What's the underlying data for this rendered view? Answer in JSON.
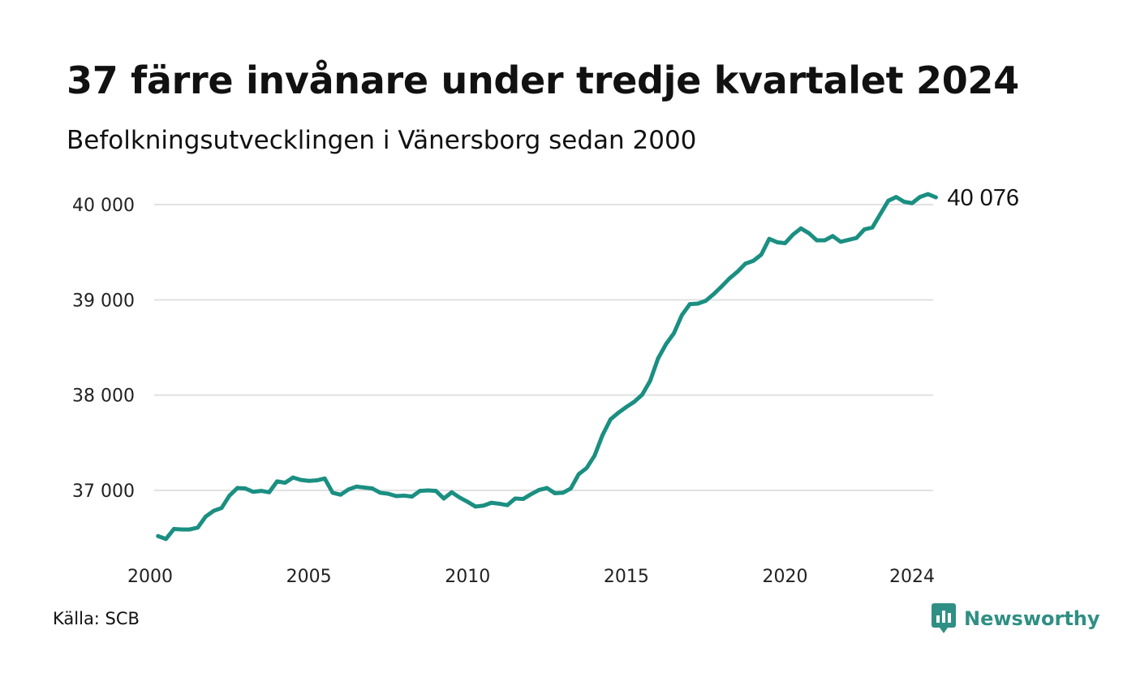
{
  "title": "37 färre invånare under tredje kvartalet 2024",
  "subtitle": "Befolkningsutvecklingen i Vänersborg sedan 2000",
  "source": "Källa: SCB",
  "brand": {
    "name": "Newsworthy",
    "icon": "newsworthy-logo-icon",
    "color": "#2f8f84"
  },
  "chart_data": {
    "type": "line",
    "title": "37 färre invånare under tredje kvartalet 2024",
    "subtitle": "Befolkningsutvecklingen i Vänersborg sedan 2000",
    "xlabel": "",
    "ylabel": "",
    "xlim": [
      2000,
      2024.75
    ],
    "ylim": [
      36430,
      40080
    ],
    "grid": "horizontal",
    "line_color": "#1a8f82",
    "y_ticks": [
      {
        "value": 37000,
        "label": "37 000"
      },
      {
        "value": 38000,
        "label": "38 000"
      },
      {
        "value": 39000,
        "label": "39 000"
      },
      {
        "value": 40000,
        "label": "40 000"
      }
    ],
    "x_ticks": [
      {
        "value": 2000,
        "label": "2000"
      },
      {
        "value": 2005,
        "label": "2005"
      },
      {
        "value": 2010,
        "label": "2010"
      },
      {
        "value": 2015,
        "label": "2015"
      },
      {
        "value": 2020,
        "label": "2020"
      },
      {
        "value": 2024,
        "label": "2024"
      }
    ],
    "end_label": "40 076",
    "series": [
      {
        "x": [
          2000.25,
          2000.5,
          2000.75,
          2001,
          2001.25,
          2001.5,
          2001.75,
          2002,
          2002.25,
          2002.5,
          2002.75,
          2003,
          2003.25,
          2003.5,
          2003.75,
          2004,
          2004.25,
          2004.5,
          2004.75,
          2005,
          2005.25,
          2005.5,
          2005.75,
          2006,
          2006.25,
          2006.5,
          2006.75,
          2007,
          2007.25,
          2007.5,
          2007.75,
          2008,
          2008.25,
          2008.5,
          2008.75,
          2009,
          2009.25,
          2009.5,
          2009.75,
          2010,
          2010.25,
          2010.5,
          2010.75,
          2011,
          2011.25,
          2011.5,
          2011.75,
          2012,
          2012.25,
          2012.5,
          2012.75,
          2013,
          2013.25,
          2013.5,
          2013.75,
          2014,
          2014.25,
          2014.5,
          2014.75,
          2015,
          2015.25,
          2015.5,
          2015.75,
          2016,
          2016.25,
          2016.5,
          2016.75,
          2017,
          2017.25,
          2017.5,
          2017.75,
          2018,
          2018.25,
          2018.5,
          2018.75,
          2019,
          2019.25,
          2019.5,
          2019.75,
          2020,
          2020.25,
          2020.5,
          2020.75,
          2021,
          2021.25,
          2021.5,
          2021.75,
          2022,
          2022.25,
          2022.5,
          2022.75,
          2023,
          2023.25,
          2023.5,
          2023.75,
          2024,
          2024.25,
          2024.5,
          2024.75
        ],
        "values": [
          36520,
          36490,
          36595,
          36590,
          36590,
          36610,
          36725,
          36785,
          36815,
          36945,
          37025,
          37020,
          36985,
          36995,
          36980,
          37095,
          37080,
          37135,
          37110,
          37100,
          37105,
          37125,
          36975,
          36955,
          37010,
          37040,
          37030,
          37020,
          36975,
          36965,
          36940,
          36945,
          36935,
          36995,
          37000,
          36995,
          36915,
          36980,
          36925,
          36880,
          36830,
          36840,
          36870,
          36860,
          36845,
          36915,
          36910,
          36960,
          37005,
          37025,
          36970,
          36975,
          37020,
          37170,
          37235,
          37365,
          37580,
          37745,
          37815,
          37875,
          37930,
          38005,
          38150,
          38385,
          38535,
          38650,
          38840,
          38955,
          38960,
          38990,
          39060,
          39140,
          39225,
          39295,
          39380,
          39410,
          39475,
          39640,
          39605,
          39595,
          39685,
          39750,
          39700,
          39625,
          39625,
          39670,
          39610,
          39630,
          39650,
          39740,
          39760,
          39900,
          40040,
          40080,
          40030,
          40015,
          40080,
          40110,
          40076
        ]
      }
    ]
  }
}
